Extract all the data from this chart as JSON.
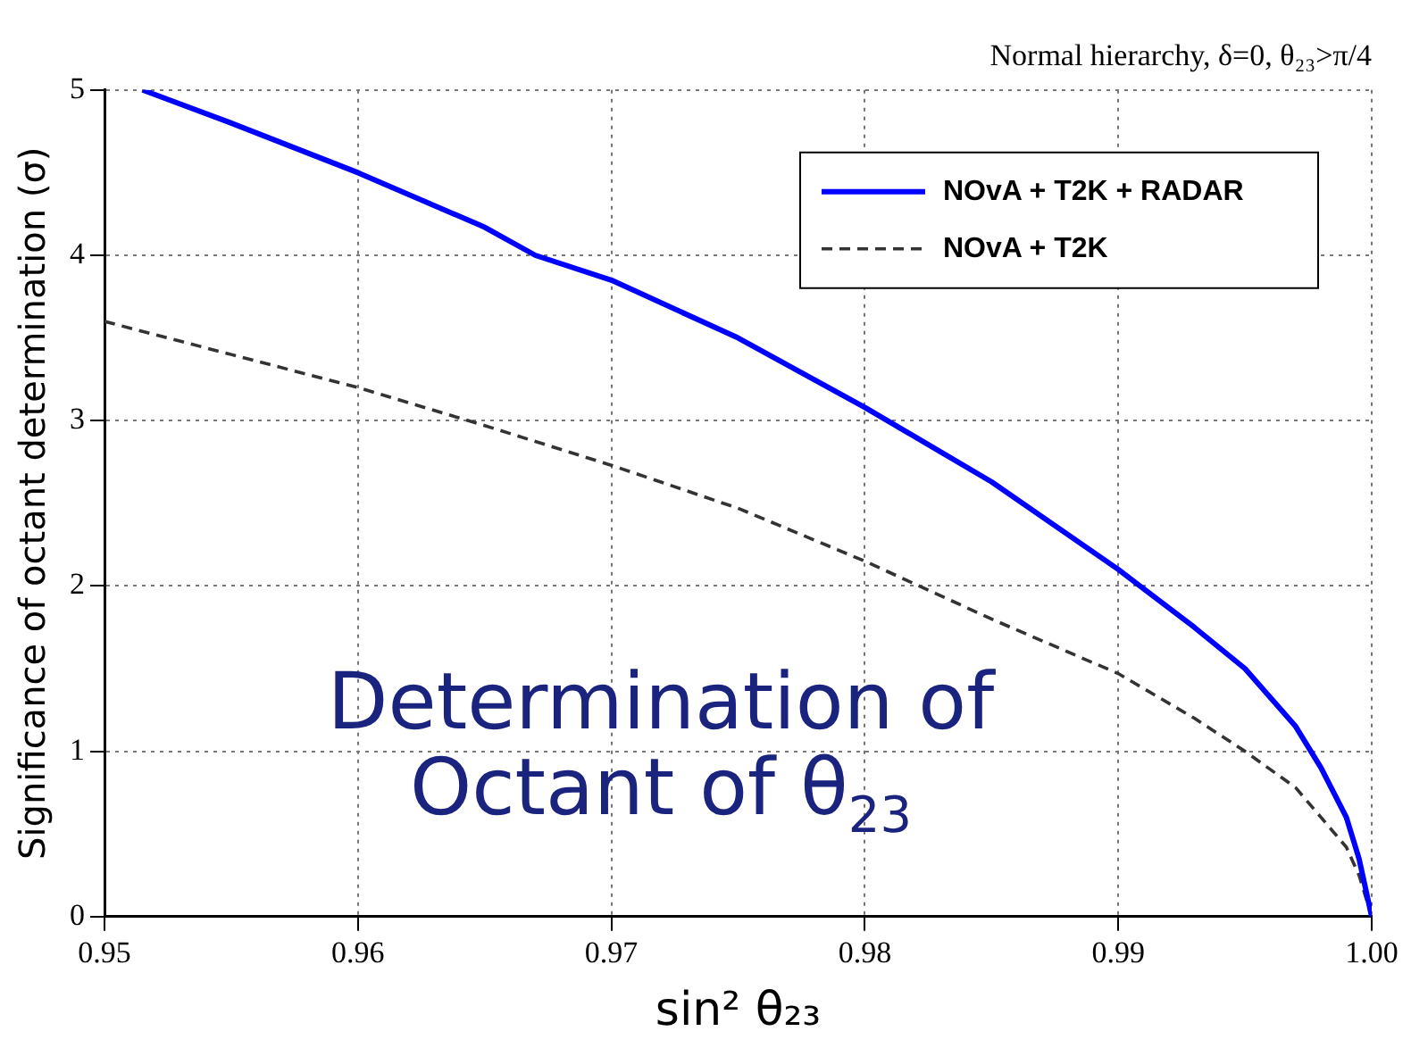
{
  "chart_data": {
    "type": "line",
    "title": "Normal hierarchy, δ=0, θ₂₃>π/4",
    "xlabel": "sin² θ₂₃",
    "ylabel": "Significance of octant determination (σ)",
    "annotations": [
      "Determination of Octant of θ$_{23}$"
    ],
    "xlim": [
      0.95,
      1.0
    ],
    "xticks": [
      0.95,
      0.96,
      0.97,
      0.98,
      0.99,
      {
        "value": 1.0,
        "label": "1.00"
      }
    ],
    "ylim": [
      0,
      5
    ],
    "yticks": [
      0,
      1,
      2,
      3,
      4,
      5
    ],
    "grid": true,
    "legend": "top right",
    "marker": "none",
    "series": [
      {
        "name": "NOvA + T2K + RADAR",
        "color": "#0000ff",
        "line_style": "solid",
        "x": [
          0.9515,
          0.955,
          0.96,
          0.965,
          0.967,
          0.97,
          0.975,
          0.98,
          0.985,
          0.99,
          0.993,
          0.995,
          0.997,
          0.998,
          0.999,
          0.9995,
          1.0
        ],
        "values": [
          5.0,
          4.8,
          4.5,
          4.17,
          4.0,
          3.85,
          3.5,
          3.08,
          2.63,
          2.1,
          1.75,
          1.5,
          1.15,
          0.9,
          0.6,
          0.35,
          0.0
        ]
      },
      {
        "name": "NOvA + T2K",
        "color": "#333333",
        "line_style": "dashed",
        "x": [
          0.95,
          0.955,
          0.96,
          0.965,
          0.97,
          0.975,
          0.98,
          0.985,
          0.99,
          0.993,
          0.995,
          0.997,
          0.998,
          0.999,
          0.9995,
          1.0
        ],
        "values": [
          3.6,
          3.4,
          3.2,
          2.97,
          2.73,
          2.47,
          2.15,
          1.8,
          1.47,
          1.2,
          1.0,
          0.78,
          0.6,
          0.42,
          0.25,
          0.0
        ]
      }
    ]
  }
}
